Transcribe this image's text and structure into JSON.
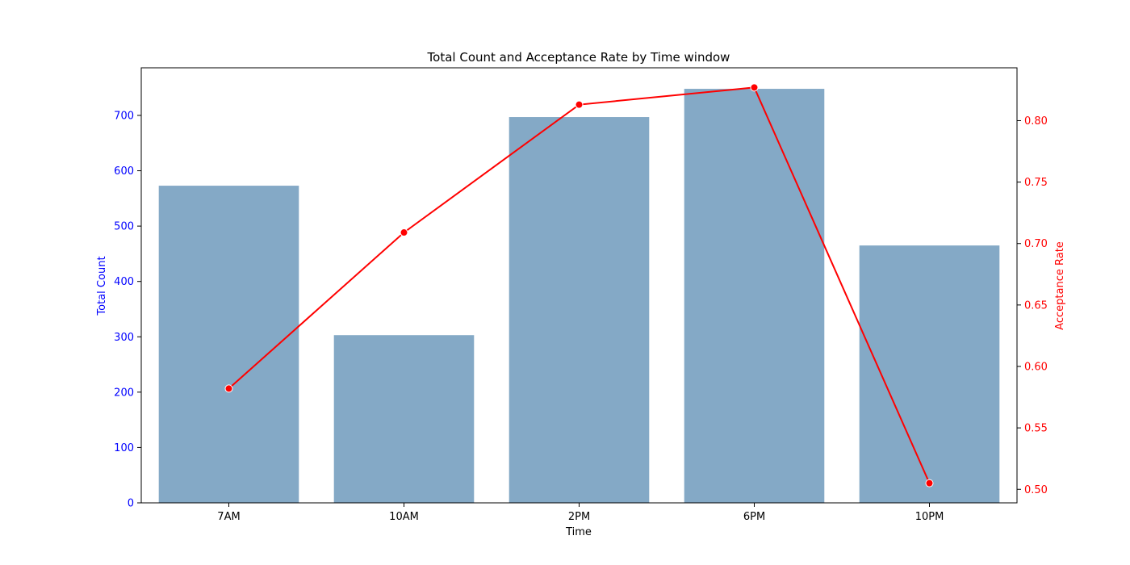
{
  "chart_data": {
    "type": "bar",
    "title": "Total Count and Acceptance Rate by Time window",
    "xlabel": "Time",
    "ylabel": "Total Count",
    "y2label": "Acceptance Rate",
    "categories": [
      "7AM",
      "10AM",
      "2PM",
      "6PM",
      "10PM"
    ],
    "series": [
      {
        "type": "bar",
        "axis": "left",
        "values": [
          573,
          303,
          697,
          748,
          465
        ],
        "color": "#84a9c6"
      },
      {
        "type": "line",
        "axis": "right",
        "values": [
          0.582,
          0.709,
          0.813,
          0.827,
          0.505
        ],
        "color": "#ff0000"
      }
    ],
    "ylim": [
      0,
      786
    ],
    "yticks": [
      0,
      100,
      200,
      300,
      400,
      500,
      600,
      700
    ],
    "ytick_labels": [
      "0",
      "100",
      "200",
      "300",
      "400",
      "500",
      "600",
      "700"
    ],
    "y2lim": [
      0.489,
      0.843
    ],
    "y2ticks": [
      0.5,
      0.55,
      0.6,
      0.65,
      0.7,
      0.75,
      0.8
    ],
    "y2tick_labels": [
      "0.50",
      "0.55",
      "0.60",
      "0.65",
      "0.70",
      "0.75",
      "0.80"
    ],
    "left_axis_color": "#0000ff",
    "right_axis_color": "#ff0000",
    "grid": false
  }
}
